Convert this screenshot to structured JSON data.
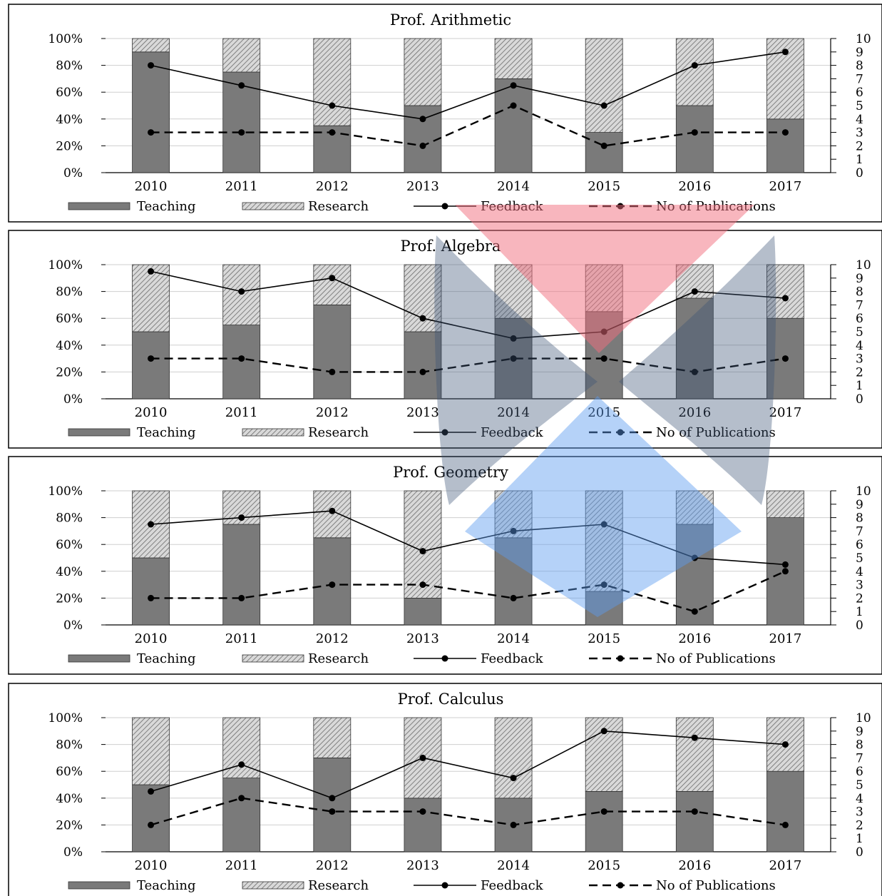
{
  "chart_data": [
    {
      "type": "bar",
      "title": "Prof. Arithmetic",
      "categories": [
        "2010",
        "2011",
        "2012",
        "2013",
        "2014",
        "2015",
        "2016",
        "2017"
      ],
      "left_axis": {
        "ticks": [
          "0%",
          "20%",
          "40%",
          "60%",
          "80%",
          "100%"
        ],
        "range": [
          0,
          100
        ]
      },
      "right_axis": {
        "ticks": [
          "0",
          "1",
          "2",
          "3",
          "4",
          "5",
          "6",
          "7",
          "8",
          "9",
          "10"
        ],
        "range": [
          0,
          10
        ]
      },
      "series": [
        {
          "name": "Teaching",
          "kind": "stacked-bar",
          "axis": "left",
          "values": [
            90,
            75,
            35,
            50,
            70,
            30,
            50,
            40
          ]
        },
        {
          "name": "Research",
          "kind": "stacked-bar",
          "axis": "left",
          "values": [
            10,
            25,
            65,
            50,
            30,
            70,
            50,
            60
          ]
        },
        {
          "name": "Feedback",
          "kind": "line",
          "axis": "right",
          "values": [
            8,
            6.5,
            5,
            4,
            6.5,
            5,
            8,
            9
          ]
        },
        {
          "name": "No of Publications",
          "kind": "dashed-line",
          "axis": "right",
          "values": [
            3,
            3,
            3,
            2,
            5,
            2,
            3,
            3
          ]
        }
      ],
      "legend_position": "bottom"
    },
    {
      "type": "bar",
      "title": "Prof. Algebra",
      "categories": [
        "2010",
        "2011",
        "2012",
        "2013",
        "2014",
        "2015",
        "2016",
        "2017"
      ],
      "left_axis": {
        "ticks": [
          "0%",
          "20%",
          "40%",
          "60%",
          "80%",
          "100%"
        ],
        "range": [
          0,
          100
        ]
      },
      "right_axis": {
        "ticks": [
          "0",
          "1",
          "2",
          "3",
          "4",
          "5",
          "6",
          "7",
          "8",
          "9",
          "10"
        ],
        "range": [
          0,
          10
        ]
      },
      "series": [
        {
          "name": "Teaching",
          "kind": "stacked-bar",
          "axis": "left",
          "values": [
            50,
            55,
            70,
            50,
            60,
            65,
            75,
            60
          ]
        },
        {
          "name": "Research",
          "kind": "stacked-bar",
          "axis": "left",
          "values": [
            50,
            45,
            30,
            50,
            40,
            35,
            25,
            40
          ]
        },
        {
          "name": "Feedback",
          "kind": "line",
          "axis": "right",
          "values": [
            9.5,
            8,
            9,
            6,
            4.5,
            5,
            8,
            7.5
          ]
        },
        {
          "name": "No of Publications",
          "kind": "dashed-line",
          "axis": "right",
          "values": [
            3,
            3,
            2,
            2,
            3,
            3,
            2,
            3
          ]
        }
      ],
      "legend_position": "bottom"
    },
    {
      "type": "bar",
      "title": "Prof. Geometry",
      "categories": [
        "2010",
        "2011",
        "2012",
        "2013",
        "2014",
        "2015",
        "2016",
        "2017"
      ],
      "left_axis": {
        "ticks": [
          "0%",
          "20%",
          "40%",
          "60%",
          "80%",
          "100%"
        ],
        "range": [
          0,
          100
        ]
      },
      "right_axis": {
        "ticks": [
          "0",
          "1",
          "2",
          "3",
          "4",
          "5",
          "6",
          "7",
          "8",
          "9",
          "10"
        ],
        "range": [
          0,
          10
        ]
      },
      "series": [
        {
          "name": "Teaching",
          "kind": "stacked-bar",
          "axis": "left",
          "values": [
            50,
            75,
            65,
            20,
            65,
            25,
            75,
            80
          ]
        },
        {
          "name": "Research",
          "kind": "stacked-bar",
          "axis": "left",
          "values": [
            50,
            25,
            35,
            80,
            35,
            75,
            25,
            20
          ]
        },
        {
          "name": "Feedback",
          "kind": "line",
          "axis": "right",
          "values": [
            7.5,
            8,
            8.5,
            5.5,
            7,
            7.5,
            5,
            4.5
          ]
        },
        {
          "name": "No of Publications",
          "kind": "dashed-line",
          "axis": "right",
          "values": [
            2,
            2,
            3,
            3,
            2,
            3,
            1,
            4
          ]
        }
      ],
      "legend_position": "bottom"
    },
    {
      "type": "bar",
      "title": "Prof. Calculus",
      "categories": [
        "2010",
        "2011",
        "2012",
        "2013",
        "2014",
        "2015",
        "2016",
        "2017"
      ],
      "left_axis": {
        "ticks": [
          "0%",
          "20%",
          "40%",
          "60%",
          "80%",
          "100%"
        ],
        "range": [
          0,
          100
        ]
      },
      "right_axis": {
        "ticks": [
          "0",
          "1",
          "2",
          "3",
          "4",
          "5",
          "6",
          "7",
          "8",
          "9",
          "10"
        ],
        "range": [
          0,
          10
        ]
      },
      "series": [
        {
          "name": "Teaching",
          "kind": "stacked-bar",
          "axis": "left",
          "values": [
            50,
            55,
            70,
            40,
            40,
            45,
            45,
            60
          ]
        },
        {
          "name": "Research",
          "kind": "stacked-bar",
          "axis": "left",
          "values": [
            50,
            45,
            30,
            60,
            60,
            55,
            55,
            40
          ]
        },
        {
          "name": "Feedback",
          "kind": "line",
          "axis": "right",
          "values": [
            4.5,
            6.5,
            4,
            7,
            5.5,
            9,
            8.5,
            8
          ]
        },
        {
          "name": "No of Publications",
          "kind": "dashed-line",
          "axis": "right",
          "values": [
            2,
            4,
            3,
            3,
            2,
            3,
            3,
            2
          ]
        }
      ],
      "legend_position": "bottom"
    }
  ],
  "colors": {
    "teaching": "#7a7a7a",
    "research_fill": "#d4d4d4",
    "research_hatch": "#6a6a6a",
    "line": "#000000",
    "axis": "#000000",
    "grid": "#cfcfcf",
    "watermark_red": "#f26d7d",
    "watermark_blue": "#5b9bf0",
    "watermark_gray": "#3d5575"
  },
  "watermark": {
    "name": "logo-watermark"
  }
}
